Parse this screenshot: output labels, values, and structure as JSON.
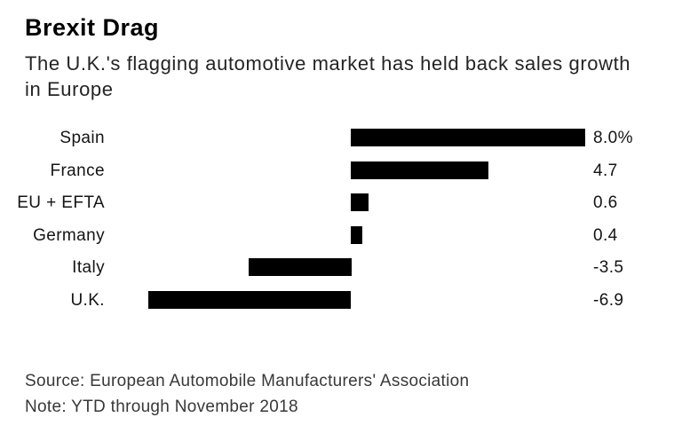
{
  "header": {
    "title": "Brexit Drag",
    "subtitle_line1": "The U.K.'s flagging automotive market has held back sales growth",
    "subtitle_line2": "in Europe"
  },
  "footer": {
    "source": "Source: European Automobile Manufacturers' Association",
    "note": "Note: YTD through November 2018"
  },
  "colors": {
    "background": "#ffffff",
    "title_text": "#000000",
    "subtitle_text": "#242424",
    "label_text": "#141414",
    "footer_text": "#383838",
    "bar": "#000000"
  },
  "chart_data": {
    "type": "bar",
    "orientation": "horizontal",
    "title": "Brexit Drag",
    "subtitle": "The U.K.'s flagging automotive market has held back sales growth in Europe",
    "categories": [
      "Spain",
      "France",
      "EU + EFTA",
      "Germany",
      "Italy",
      "U.K."
    ],
    "values": [
      8.0,
      4.7,
      0.6,
      0.4,
      -3.5,
      -6.9
    ],
    "value_labels": [
      "8.0%",
      "4.7",
      "0.6",
      "0.4",
      "-3.5",
      "-6.9"
    ],
    "unit": "percent",
    "xlabel": "",
    "ylabel": "",
    "xlim": [
      -8.1,
      8.0
    ],
    "grid": false,
    "legend": "none",
    "bar_color": "#000000",
    "source": "European Automobile Manufacturers' Association",
    "note": "YTD through November 2018"
  }
}
